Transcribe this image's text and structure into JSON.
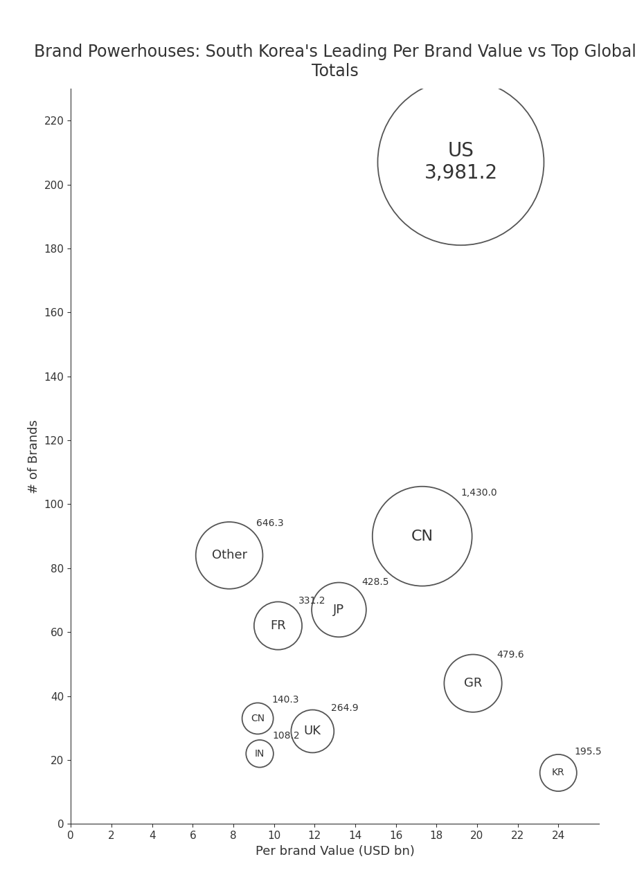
{
  "chart_data": {
    "type": "bubble",
    "title": "Brand Powerhouses: South Korea's Leading Per Brand Value vs Top Global Totals",
    "x_label": "Per brand Value (USD bn)",
    "y_label": "# of Brands",
    "labels": [
      "US",
      "CN",
      "GR",
      "Other",
      "JP",
      "FR",
      "UK",
      "CN",
      "IN",
      "KR"
    ],
    "x": [
      19.2,
      17.3,
      19.8,
      7.8,
      13.2,
      10.2,
      11.9,
      9.2,
      9.3,
      24.0
    ],
    "values": [
      207,
      90,
      44,
      84,
      67,
      62,
      29,
      33,
      22,
      16
    ],
    "sizes": [
      3981.2,
      1430.0,
      479.6,
      646.3,
      428.5,
      331.2,
      264.9,
      140.3,
      108.2,
      195.5
    ],
    "size_labels": [
      "3,981.2",
      "1,430.0",
      "479.6",
      "646.3",
      "428.5",
      "331.2",
      "264.9",
      "140.3",
      "108.2",
      "195.5"
    ],
    "color": "#555555",
    "xlim": [
      0,
      26
    ],
    "xticks": [
      0,
      2,
      4,
      6,
      8,
      10,
      12,
      14,
      16,
      18,
      20,
      22,
      24
    ],
    "ylim": [
      0,
      230
    ],
    "yticks": [
      0,
      20,
      40,
      60,
      80,
      100,
      120,
      140,
      160,
      180,
      200,
      220
    ],
    "grid": false
  }
}
